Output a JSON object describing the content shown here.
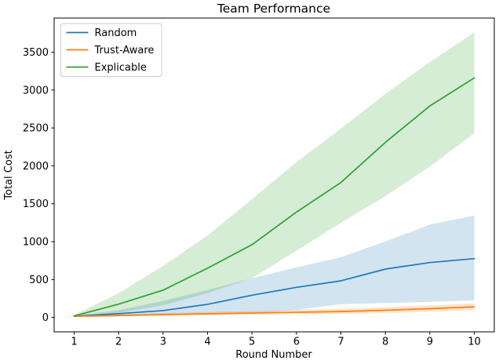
{
  "chart_data": {
    "type": "line",
    "title": "Team Performance",
    "xlabel": "Round Number",
    "ylabel": "Total Cost",
    "x": [
      1,
      2,
      3,
      4,
      5,
      6,
      7,
      8,
      9,
      10
    ],
    "xlim": [
      0.55,
      10.45
    ],
    "ylim": [
      -190,
      3950
    ],
    "xticks": [
      1,
      2,
      3,
      4,
      5,
      6,
      7,
      8,
      9,
      10
    ],
    "yticks": [
      0,
      500,
      1000,
      1500,
      2000,
      2500,
      3000,
      3500
    ],
    "grid": false,
    "legend_position": "upper-left",
    "band_opacity": 0.2,
    "series": [
      {
        "name": "Random",
        "color": "#1f77b4",
        "values": [
          15,
          50,
          90,
          173,
          293,
          397,
          483,
          638,
          724,
          776
        ],
        "band_low": [
          8,
          20,
          30,
          42,
          52,
          100,
          173,
          190,
          205,
          225
        ],
        "band_high": [
          25,
          95,
          217,
          362,
          518,
          660,
          794,
          1001,
          1224,
          1346
        ]
      },
      {
        "name": "Trust-Aware",
        "color": "#ff7f0e",
        "values": [
          15,
          25,
          38,
          48,
          58,
          68,
          78,
          95,
          115,
          140
        ],
        "band_low": [
          8,
          14,
          22,
          28,
          34,
          40,
          46,
          58,
          75,
          95
        ],
        "band_high": [
          22,
          40,
          60,
          72,
          85,
          100,
          115,
          135,
          160,
          185
        ]
      },
      {
        "name": "Explicable",
        "color": "#2ca02c",
        "values": [
          20,
          175,
          360,
          650,
          960,
          1390,
          1780,
          2310,
          2790,
          3160
        ],
        "band_low": [
          10,
          60,
          160,
          320,
          520,
          880,
          1250,
          1600,
          1990,
          2430
        ],
        "band_high": [
          30,
          320,
          680,
          1080,
          1560,
          2050,
          2490,
          2950,
          3370,
          3760
        ]
      }
    ]
  }
}
